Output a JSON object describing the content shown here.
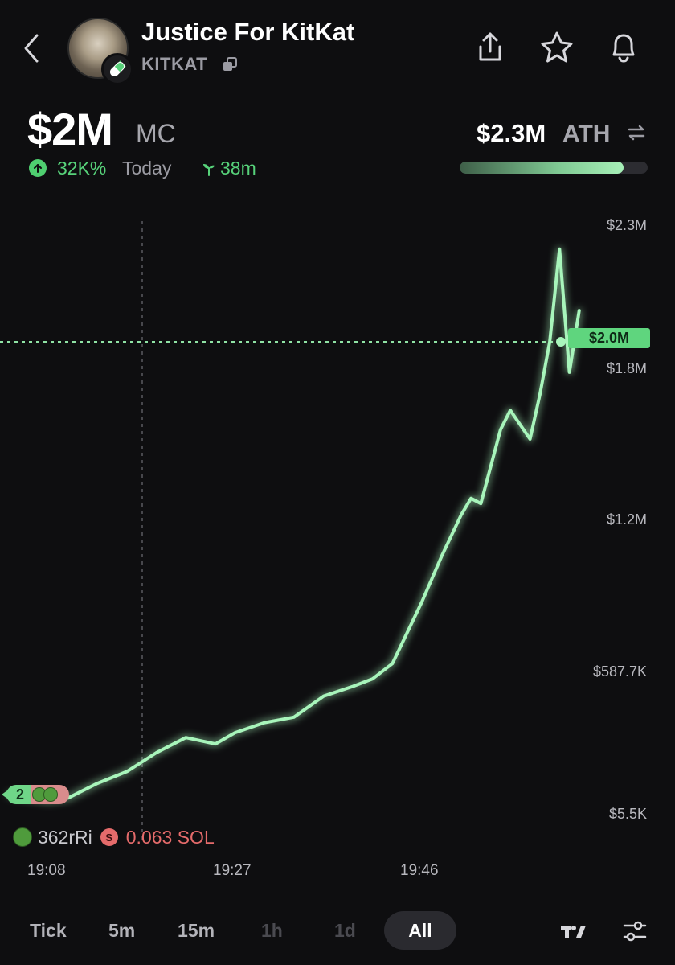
{
  "header": {
    "title": "Justice For KitKat",
    "ticker": "KITKAT"
  },
  "market": {
    "mc_value": "$2M",
    "mc_label": "MC",
    "change_pct": "32K%",
    "change_period": "Today",
    "age": "38m",
    "ath_value": "$2.3M",
    "ath_label": "ATH",
    "ath_progress": 0.87
  },
  "chart": {
    "current_price_label": "$2.0M",
    "y_ticks": [
      "$2.3M",
      "$1.8M",
      "$1.2M",
      "$587.7K",
      "$5.5K"
    ],
    "x_ticks": [
      "19:08",
      "19:27",
      "19:46"
    ],
    "marker_count": "2",
    "trade": {
      "trader": "362rRi",
      "side_badge": "S",
      "amount": "0.063 SOL"
    }
  },
  "chart_data": {
    "type": "line",
    "ylim": [
      5.5,
      2300
    ],
    "yticks": [
      "$2.3M",
      "$1.8M",
      "$1.2M",
      "$587.7K",
      "$5.5K"
    ],
    "xticks": [
      "19:08",
      "19:27",
      "19:46"
    ],
    "series": [
      {
        "values": [
          {
            "t": "19:08",
            "v": 60
          },
          {
            "t": "19:10",
            "v": 70
          },
          {
            "t": "19:13",
            "v": 130
          },
          {
            "t": "19:16",
            "v": 190
          },
          {
            "t": "19:19",
            "v": 260
          },
          {
            "t": "19:22",
            "v": 300
          },
          {
            "t": "19:25",
            "v": 310
          },
          {
            "t": "19:27",
            "v": 330
          },
          {
            "t": "19:30",
            "v": 370
          },
          {
            "t": "19:33",
            "v": 420
          },
          {
            "t": "19:36",
            "v": 470
          },
          {
            "t": "19:39",
            "v": 530
          },
          {
            "t": "19:41",
            "v": 570
          },
          {
            "t": "19:43",
            "v": 600
          },
          {
            "t": "19:46",
            "v": 880
          },
          {
            "t": "19:48",
            "v": 1050
          },
          {
            "t": "19:50",
            "v": 1200
          },
          {
            "t": "19:51",
            "v": 1300
          },
          {
            "t": "19:52",
            "v": 1250
          },
          {
            "t": "19:54",
            "v": 1550
          },
          {
            "t": "19:55",
            "v": 1650
          },
          {
            "t": "19:57",
            "v": 1500
          },
          {
            "t": "19:58",
            "v": 1700
          },
          {
            "t": "19:59",
            "v": 1900
          },
          {
            "t": "20:00",
            "v": 2200
          },
          {
            "t": "20:01",
            "v": 1800
          },
          {
            "t": "20:02",
            "v": 2000
          }
        ]
      }
    ],
    "current_value": "$2.0M"
  },
  "timeframes": [
    "Tick",
    "5m",
    "15m",
    "1h",
    "1d",
    "All"
  ],
  "active_timeframe": "All"
}
